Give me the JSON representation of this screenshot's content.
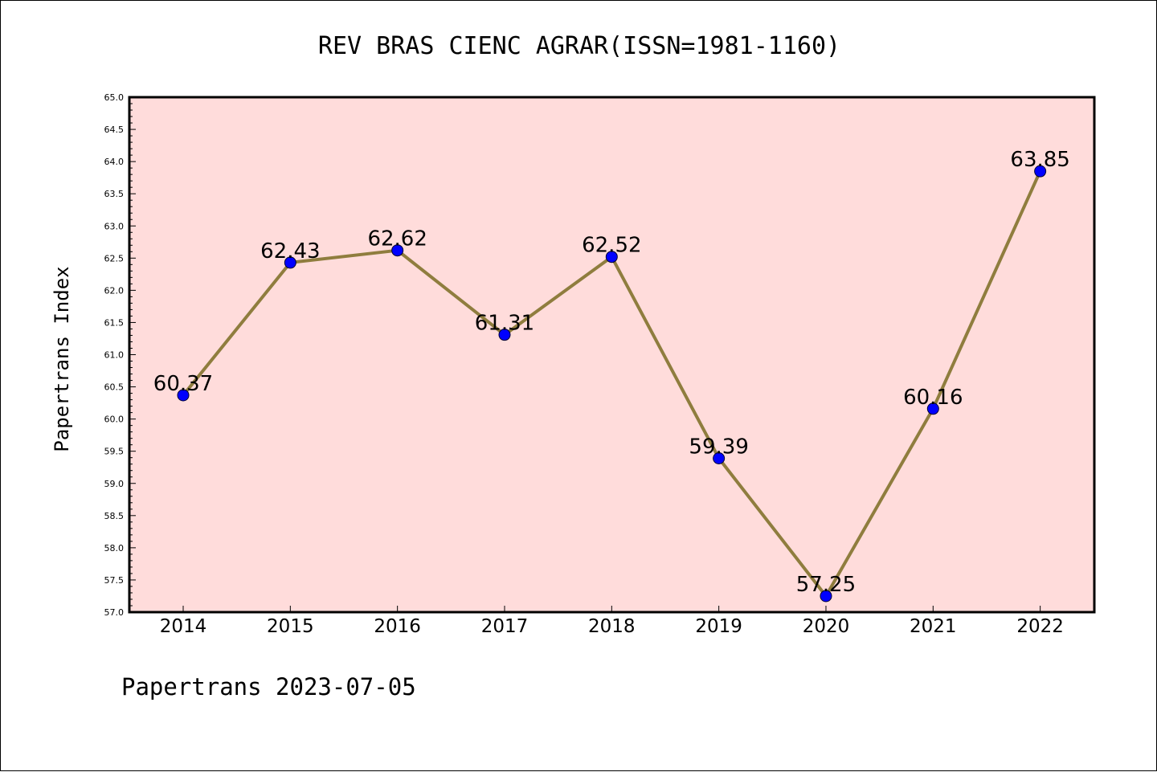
{
  "chart_data": {
    "type": "line",
    "title": "REV BRAS CIENC AGRAR(ISSN=1981-1160)",
    "ylabel": "Papertrans Index",
    "xlabel": "",
    "categories": [
      "2014",
      "2015",
      "2016",
      "2017",
      "2018",
      "2019",
      "2020",
      "2021",
      "2022"
    ],
    "series": [
      {
        "values": [
          60.37,
          62.43,
          62.62,
          61.31,
          62.52,
          59.39,
          57.25,
          60.16,
          63.85
        ],
        "data_labels": [
          "60.37",
          "62.43",
          "62.62",
          "61.31",
          "62.52",
          "59.39",
          "57.25",
          "60.16",
          "63.85"
        ]
      }
    ],
    "ylim": [
      57.0,
      65.0
    ],
    "yticks": [
      "57.0",
      "57.5",
      "58.0",
      "58.5",
      "59.0",
      "59.5",
      "60.0",
      "60.5",
      "61.0",
      "61.5",
      "62.0",
      "62.5",
      "63.0",
      "63.5",
      "64.0",
      "64.5",
      "65.0"
    ],
    "grid": false,
    "colors": {
      "plot_background": "#ffdcdb",
      "line": "#8f7d3e",
      "marker": "#0000ff"
    }
  },
  "footer": {
    "text": "Papertrans 2023-07-05"
  }
}
